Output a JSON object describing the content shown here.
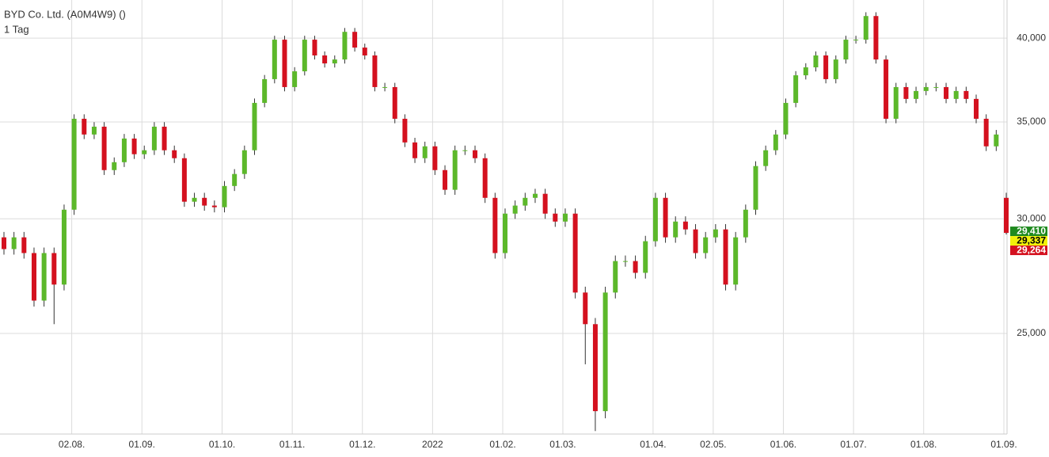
{
  "chart_data": {
    "type": "candlestick",
    "title": "BYD Co. Ltd. (A0M4W9) ()",
    "subtitle": "1 Tag",
    "categories": [
      null,
      null,
      null,
      null,
      null,
      null,
      null,
      "02.08.",
      null,
      null,
      null,
      null,
      null,
      null,
      "01.09.",
      null,
      null,
      null,
      null,
      null,
      null,
      null,
      "01.10.",
      null,
      null,
      null,
      null,
      null,
      null,
      "01.11.",
      null,
      null,
      null,
      null,
      null,
      null,
      "01.12.",
      null,
      null,
      null,
      null,
      null,
      null,
      "2022",
      null,
      null,
      null,
      null,
      null,
      null,
      "01.02.",
      null,
      null,
      null,
      null,
      null,
      "01.03.",
      null,
      null,
      null,
      null,
      null,
      null,
      null,
      null,
      "01.04.",
      null,
      null,
      null,
      null,
      null,
      "02.05.",
      null,
      null,
      null,
      null,
      null,
      null,
      "01.06.",
      null,
      null,
      null,
      null,
      null,
      null,
      "01.07.",
      null,
      null,
      null,
      null,
      null,
      null,
      "01.08.",
      null,
      null,
      null,
      null,
      null,
      null,
      null,
      "01.09."
    ],
    "open": [
      29130,
      28590,
      29130,
      28410,
      26340,
      28410,
      27020,
      30440,
      35180,
      34310,
      34740,
      32420,
      32830,
      34090,
      33250,
      33460,
      34740,
      33460,
      33040,
      30830,
      31020,
      30640,
      30560,
      31610,
      32220,
      33460,
      36080,
      37470,
      39900,
      37000,
      37940,
      39900,
      38910,
      38420,
      38660,
      40400,
      39400,
      38910,
      37000,
      37000,
      35180,
      33880,
      33040,
      33670,
      32420,
      31420,
      33460,
      33460,
      33040,
      31020,
      28410,
      30250,
      30640,
      31020,
      31220,
      30250,
      29870,
      30250,
      26680,
      25370,
      22090,
      26680,
      28050,
      28050,
      27530,
      28950,
      31020,
      29130,
      29870,
      29500,
      28410,
      29130,
      29500,
      27020,
      29130,
      30440,
      32630,
      33460,
      34310,
      36080,
      37700,
      38180,
      38910,
      37470,
      38660,
      39900,
      39900,
      41430,
      38660,
      35180,
      37000,
      36310,
      36770,
      37000,
      37000,
      36310,
      36770,
      36310,
      35180,
      33670,
      31020
    ],
    "high": [
      29380,
      29380,
      29380,
      28660,
      28660,
      28660,
      30690,
      35430,
      35430,
      34990,
      34990,
      33080,
      34340,
      34340,
      33710,
      34990,
      34990,
      33710,
      33290,
      31270,
      31270,
      30890,
      31860,
      32470,
      33710,
      36330,
      37720,
      40150,
      40150,
      38190,
      40150,
      40150,
      39160,
      38910,
      40650,
      40650,
      39650,
      39160,
      37250,
      37250,
      35430,
      34130,
      33920,
      33920,
      32670,
      33710,
      33710,
      33710,
      33290,
      31270,
      30500,
      30890,
      31270,
      31470,
      31470,
      30500,
      30500,
      30500,
      26930,
      25620,
      26930,
      28300,
      28300,
      28300,
      29200,
      31270,
      31270,
      30120,
      30120,
      29750,
      29380,
      29750,
      29750,
      29380,
      30690,
      32880,
      33710,
      34560,
      36330,
      37950,
      38430,
      39160,
      39160,
      38910,
      40150,
      40150,
      41680,
      41680,
      38910,
      37250,
      37250,
      37020,
      37250,
      37250,
      37250,
      37020,
      37020,
      36560,
      35430,
      34560,
      31270
    ],
    "low": [
      28340,
      28340,
      28160,
      26090,
      26090,
      25370,
      26770,
      30190,
      34060,
      34060,
      32170,
      32170,
      32580,
      33000,
      33000,
      33210,
      33210,
      32790,
      30580,
      30580,
      30390,
      30310,
      30310,
      31360,
      31970,
      33210,
      35830,
      37220,
      36750,
      36750,
      37690,
      38660,
      38170,
      38170,
      38410,
      39150,
      38660,
      36750,
      36750,
      34930,
      33630,
      32790,
      32790,
      32170,
      31170,
      31170,
      33210,
      32790,
      30770,
      28160,
      28160,
      30000,
      30390,
      30770,
      30000,
      29620,
      29620,
      26430,
      23800,
      21400,
      21840,
      26430,
      27800,
      27280,
      27280,
      28700,
      28880,
      28880,
      29250,
      28160,
      28160,
      28880,
      26770,
      26770,
      28880,
      30190,
      32380,
      33210,
      34060,
      35830,
      37450,
      37930,
      37220,
      37220,
      38410,
      39650,
      39650,
      38410,
      34930,
      34930,
      36060,
      36060,
      36520,
      36750,
      36060,
      36060,
      36060,
      34930,
      33420,
      33420,
      29264
    ],
    "close": [
      28590,
      29130,
      28410,
      26340,
      28410,
      27020,
      30440,
      35180,
      34310,
      34740,
      32420,
      32830,
      34090,
      33250,
      33460,
      34740,
      33460,
      33040,
      30830,
      31020,
      30640,
      30560,
      31610,
      32220,
      33460,
      36080,
      37470,
      39900,
      37000,
      37940,
      39900,
      38910,
      38420,
      38660,
      40400,
      39400,
      38910,
      37000,
      37000,
      35180,
      33880,
      33040,
      33670,
      32420,
      31420,
      33460,
      33460,
      33040,
      31020,
      28410,
      30250,
      30640,
      31020,
      31220,
      30250,
      29870,
      30250,
      26680,
      25370,
      22090,
      26680,
      28050,
      28050,
      27530,
      28950,
      31020,
      29130,
      29870,
      29500,
      28410,
      29130,
      29500,
      27020,
      29130,
      30440,
      32630,
      33460,
      34310,
      36080,
      37700,
      38180,
      38910,
      37470,
      38660,
      39900,
      39900,
      41430,
      38660,
      35180,
      37000,
      36310,
      36770,
      37000,
      37000,
      36310,
      36770,
      36310,
      35180,
      33670,
      34310,
      29337
    ],
    "up_color": "#5cb82a",
    "down_color": "#d4111f",
    "ylim": [
      21300,
      42500
    ],
    "log_scale": true,
    "yticks": [
      {
        "value": 25000,
        "label": "25,000"
      },
      {
        "value": 30000,
        "label": "30,000"
      },
      {
        "value": 35000,
        "label": "35,000"
      },
      {
        "value": 40000,
        "label": "40,000"
      }
    ],
    "grid": true,
    "price_labels": [
      {
        "value": 29410,
        "label": "29,410",
        "color": "#1f8a1f",
        "text_color": "#ffffff"
      },
      {
        "value": 29337,
        "label": "29,337",
        "color": "#f2f20a",
        "text_color": "#000000"
      },
      {
        "value": 29264,
        "label": "29,264",
        "color": "#d4111f",
        "text_color": "#ffffff"
      }
    ]
  }
}
